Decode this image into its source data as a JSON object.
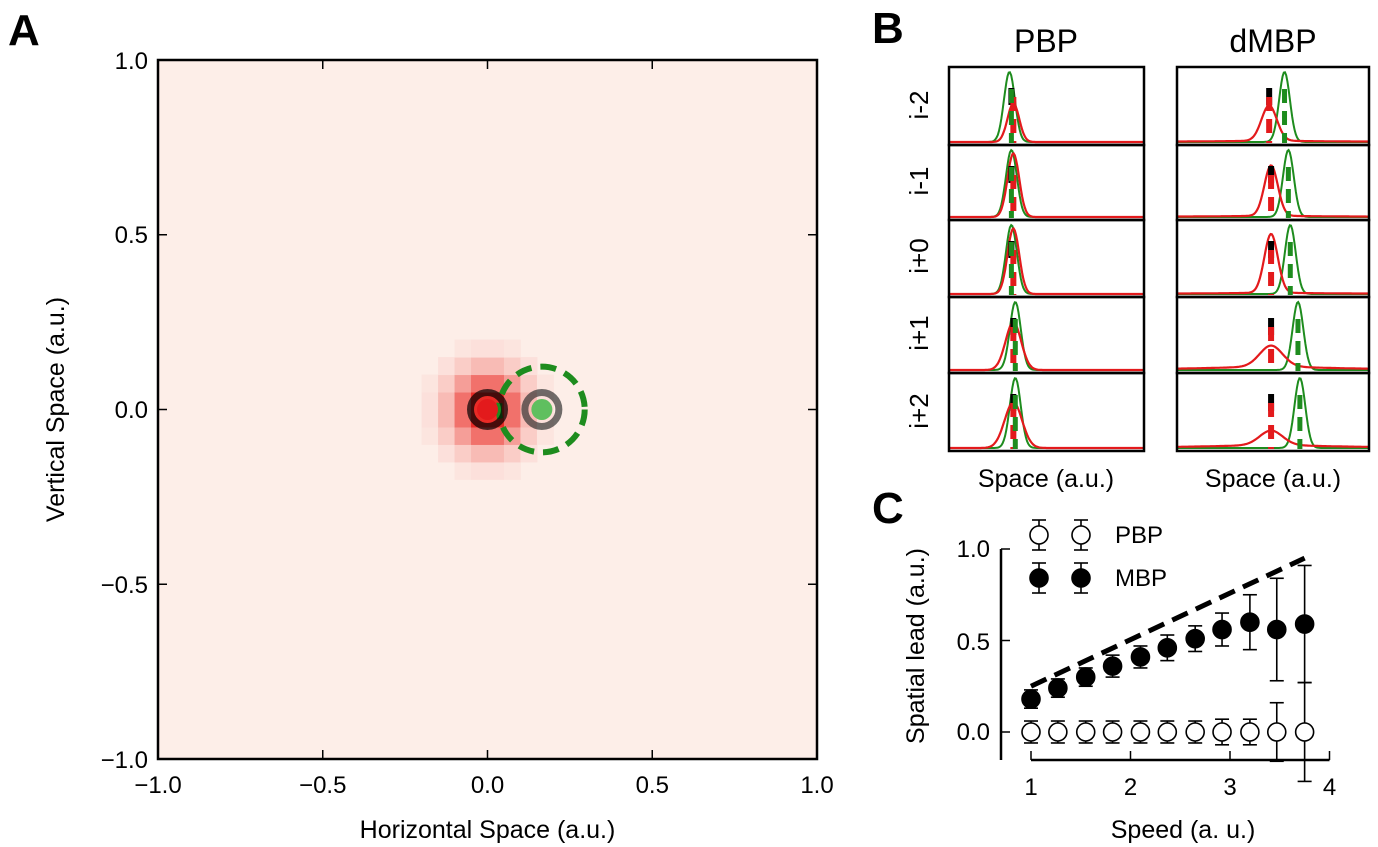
{
  "figure": {
    "panel_labels": [
      "A",
      "B",
      "C"
    ]
  },
  "colors": {
    "heat_base": "#fdeee8",
    "heat_hot": "#e8140f",
    "green": "#1e8c1e",
    "red": "#e31a1c",
    "black": "#000000"
  },
  "chart_data": [
    {
      "panel": "A",
      "type": "heatmap",
      "title": "",
      "xlabel": "Horizontal Space (a.u.)",
      "ylabel": "Vertical Space (a.u.)",
      "xlim": [
        -1.0,
        1.0
      ],
      "ylim": [
        -1.0,
        1.0
      ],
      "xticks": [
        "−1.0",
        "−0.5",
        "0.0",
        "0.5",
        "1.0"
      ],
      "yticks": [
        "1.0",
        "0.5",
        "0.0",
        "−0.5",
        "−1.0"
      ],
      "xtick_values": [
        -1.0,
        -0.5,
        0.0,
        0.5,
        1.0
      ],
      "ytick_values": [
        1.0,
        0.5,
        0.0,
        -0.5,
        -1.0
      ],
      "heatmap": {
        "grid": 40,
        "peak": [
          0.0,
          0.0
        ],
        "spread": 0.075,
        "color_min": "#fdeee8",
        "color_max": "#e8140f"
      },
      "markers": [
        {
          "name": "estimated position",
          "x": 0.0,
          "y": 0.0,
          "fill": "#e31a1c",
          "ring": "#000000"
        },
        {
          "name": "true position",
          "x": 0.165,
          "y": 0.0,
          "fill": "#5fbf5f",
          "ring": "#333333"
        }
      ],
      "dashed_circle": {
        "x": 0.165,
        "y": 0.0,
        "r": 0.13,
        "color": "#1e8c1e"
      }
    },
    {
      "panel": "B",
      "type": "line",
      "columns": [
        "PBP",
        "dMBP"
      ],
      "rows": [
        "i-2",
        "i-1",
        "i+0",
        "i+1",
        "i+2"
      ],
      "xlabel": "Space (a.u.)",
      "series_colors": {
        "true": "#1e8c1e",
        "estimate": "#e31a1c",
        "reference": "#000000"
      },
      "panels": [
        {
          "column": "PBP",
          "row": "i-2",
          "green_center": 0.31,
          "red_center": 0.33,
          "red_peak": 0.55,
          "red_width": 0.03,
          "red_floor": 0.0,
          "black_mark": 0.32,
          "red_dash": 0.33,
          "green_dash": 0.32
        },
        {
          "column": "PBP",
          "row": "i-1",
          "green_center": 0.32,
          "red_center": 0.33,
          "red_peak": 0.95,
          "red_width": 0.03,
          "red_floor": 0.0,
          "black_mark": 0.32,
          "red_dash": 0.33,
          "green_dash": 0.32
        },
        {
          "column": "PBP",
          "row": "i+0",
          "green_center": 0.32,
          "red_center": 0.33,
          "red_peak": 0.95,
          "red_width": 0.03,
          "red_floor": 0.0,
          "black_mark": 0.32,
          "red_dash": 0.33,
          "green_dash": 0.32
        },
        {
          "column": "PBP",
          "row": "i+1",
          "green_center": 0.34,
          "red_center": 0.33,
          "red_peak": 0.7,
          "red_width": 0.04,
          "red_floor": 0.0,
          "black_mark": 0.33,
          "red_dash": 0.33,
          "green_dash": 0.34
        },
        {
          "column": "PBP",
          "row": "i+2",
          "green_center": 0.34,
          "red_center": 0.33,
          "red_peak": 0.65,
          "red_width": 0.045,
          "red_floor": 0.0,
          "black_mark": 0.33,
          "red_dash": 0.33,
          "green_dash": 0.34
        },
        {
          "column": "dMBP",
          "row": "i-2",
          "green_center": 0.56,
          "red_center": 0.48,
          "red_peak": 0.5,
          "red_width": 0.04,
          "red_floor": 0.02,
          "black_mark": 0.48,
          "red_dash": 0.48,
          "green_dash": 0.56
        },
        {
          "column": "dMBP",
          "row": "i-1",
          "green_center": 0.58,
          "red_center": 0.49,
          "red_peak": 0.75,
          "red_width": 0.035,
          "red_floor": 0.02,
          "black_mark": 0.49,
          "red_dash": 0.49,
          "green_dash": 0.58
        },
        {
          "column": "dMBP",
          "row": "i+0",
          "green_center": 0.59,
          "red_center": 0.49,
          "red_peak": 0.85,
          "red_width": 0.035,
          "red_floor": 0.02,
          "black_mark": 0.49,
          "red_dash": 0.49,
          "green_dash": 0.59
        },
        {
          "column": "dMBP",
          "row": "i+1",
          "green_center": 0.63,
          "red_center": 0.49,
          "red_peak": 0.3,
          "red_width": 0.06,
          "red_floor": 0.06,
          "black_mark": 0.49,
          "red_dash": 0.49,
          "green_dash": 0.63
        },
        {
          "column": "dMBP",
          "row": "i+2",
          "green_center": 0.64,
          "red_center": 0.49,
          "red_peak": 0.2,
          "red_width": 0.06,
          "red_floor": 0.05,
          "black_mark": 0.49,
          "red_dash": 0.49,
          "green_dash": 0.64
        }
      ]
    },
    {
      "panel": "C",
      "type": "scatter",
      "xlabel": "Speed (a. u.)",
      "ylabel": "Spatial lead (a.u.)",
      "xlim": [
        0.85,
        4.0
      ],
      "ylim": [
        -0.18,
        1.0
      ],
      "xticks": [
        "1",
        "2",
        "3",
        "4"
      ],
      "xtick_values": [
        1,
        2,
        3,
        4
      ],
      "yticks": [
        "1.0",
        "0.5",
        "0.0"
      ],
      "ytick_values": [
        1.0,
        0.5,
        0.0
      ],
      "legend": {
        "placement": "top-left",
        "entries": [
          "PBP",
          "MBP"
        ]
      },
      "series": [
        {
          "name": "PBP",
          "marker": "open-circle",
          "x": [
            1.0,
            1.27,
            1.55,
            1.82,
            2.1,
            2.37,
            2.65,
            2.92,
            3.2,
            3.47,
            3.75
          ],
          "y": [
            0.0,
            0.0,
            0.0,
            0.0,
            0.0,
            0.0,
            0.0,
            0.0,
            0.0,
            0.0,
            0.0
          ],
          "err": [
            0.06,
            0.06,
            0.06,
            0.06,
            0.06,
            0.06,
            0.06,
            0.07,
            0.07,
            0.16,
            0.27
          ]
        },
        {
          "name": "MBP",
          "marker": "filled-circle",
          "x": [
            1.0,
            1.27,
            1.55,
            1.82,
            2.1,
            2.37,
            2.65,
            2.92,
            3.2,
            3.47,
            3.75
          ],
          "y": [
            0.18,
            0.24,
            0.3,
            0.36,
            0.41,
            0.46,
            0.51,
            0.56,
            0.6,
            0.56,
            0.59
          ],
          "err": [
            0.05,
            0.05,
            0.05,
            0.06,
            0.06,
            0.07,
            0.07,
            0.09,
            0.15,
            0.28,
            0.32
          ]
        }
      ],
      "reference_line": {
        "style": "dashed",
        "x": [
          1.0,
          3.75
        ],
        "y": [
          0.25,
          0.95
        ]
      }
    }
  ]
}
